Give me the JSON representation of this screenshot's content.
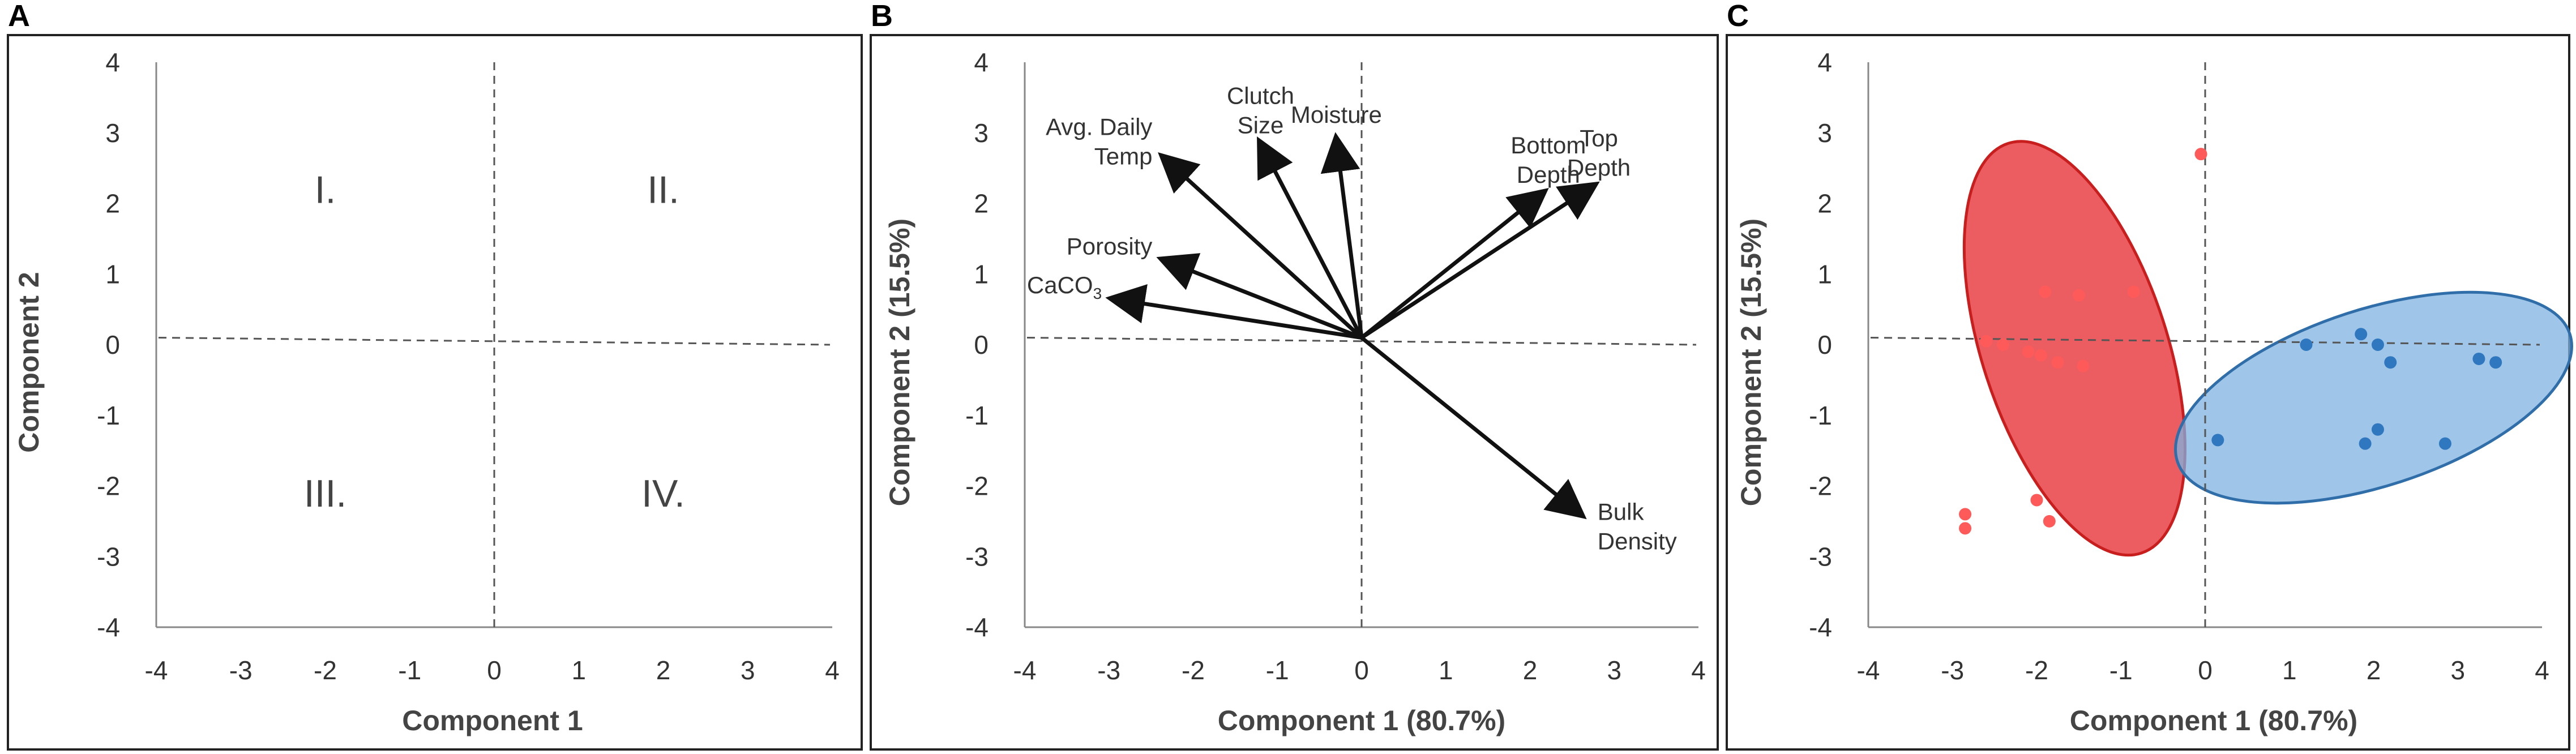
{
  "panels": [
    {
      "letter": "A",
      "xlabel": "Component 1",
      "ylabel": "Component 2",
      "quadrant_labels": [
        "I.",
        "II.",
        "III.",
        "IV."
      ]
    },
    {
      "letter": "B",
      "xlabel": "Component 1 (80.7%)",
      "ylabel": "Component 2 (15.5%)"
    },
    {
      "letter": "C",
      "xlabel": "Component 1 (80.7%)",
      "ylabel": "Component 2 (15.5%)"
    }
  ],
  "colors": {
    "axis": "#000000",
    "tick_text": "#333333",
    "dashed_line": "#555555",
    "red_fill": "#e8474b",
    "red_stroke": "#c81e1e",
    "red_point": "#ff5a5a",
    "blue_fill": "#7fb2e0",
    "blue_stroke": "#2f6ea9",
    "blue_point": "#2f78c0"
  },
  "chart_data": [
    {
      "type": "scatter",
      "panel": "A",
      "xlabel": "Component 1",
      "ylabel": "Component 2",
      "xlim": [
        -4,
        4
      ],
      "ylim": [
        -4,
        4
      ],
      "xticks": [
        "-4",
        "-3",
        "-2",
        "-1",
        "0",
        "1",
        "2",
        "3",
        "4"
      ],
      "yticks": [
        "4",
        "3",
        "2",
        "1",
        "0",
        "-1",
        "-2",
        "-3",
        "-4"
      ],
      "grid": false,
      "reference_lines": "dashed lines at x=0 and y=0",
      "annotations": [
        {
          "text": "I.",
          "x": -2,
          "y": 2.2
        },
        {
          "text": "II.",
          "x": 2,
          "y": 2.2
        },
        {
          "text": "III.",
          "x": -2,
          "y": -2.1
        },
        {
          "text": "IV.",
          "x": 2,
          "y": -2.1
        }
      ]
    },
    {
      "type": "biplot",
      "panel": "B",
      "xlabel": "Component 1 (80.7%)",
      "ylabel": "Component 2 (15.5%)",
      "xlim": [
        -4,
        4
      ],
      "ylim": [
        -4,
        4
      ],
      "xticks": [
        "-4",
        "-3",
        "-2",
        "-1",
        "0",
        "1",
        "2",
        "3",
        "4"
      ],
      "yticks": [
        "4",
        "3",
        "2",
        "1",
        "0",
        "-1",
        "-2",
        "-3",
        "-4"
      ],
      "grid": false,
      "origin": [
        0,
        0.1
      ],
      "vectors": [
        {
          "label": [
            "Avg. Daily",
            "Temp"
          ],
          "x": -2.35,
          "y": 2.65
        },
        {
          "label": [
            "Clutch",
            "Size"
          ],
          "x": -1.2,
          "y": 2.85
        },
        {
          "label": [
            "Moisture"
          ],
          "x": -0.3,
          "y": 2.9
        },
        {
          "label": [
            "Porosity"
          ],
          "x": -2.35,
          "y": 1.2
        },
        {
          "label": [
            "CaCO3"
          ],
          "x": -2.95,
          "y": 0.65
        },
        {
          "label": [
            "Bottom",
            "Depth"
          ],
          "x": 2.15,
          "y": 2.15
        },
        {
          "label": [
            "Top",
            "Depth"
          ],
          "x": 2.75,
          "y": 2.25
        },
        {
          "label": [
            "Bulk",
            "Density"
          ],
          "x": 2.6,
          "y": -2.4
        }
      ]
    },
    {
      "type": "scatter",
      "panel": "C",
      "xlabel": "Component 1 (80.7%)",
      "ylabel": "Component 2 (15.5%)",
      "xlim": [
        -4,
        4
      ],
      "ylim": [
        -4,
        4
      ],
      "xticks": [
        "-4",
        "-3",
        "-2",
        "-1",
        "0",
        "1",
        "2",
        "3",
        "4"
      ],
      "yticks": [
        "4",
        "3",
        "2",
        "1",
        "0",
        "-1",
        "-2",
        "-3",
        "-4"
      ],
      "grid": false,
      "series": [
        {
          "color": "#ff5a5a",
          "points": [
            [
              -0.05,
              2.7
            ],
            [
              -1.9,
              0.75
            ],
            [
              -1.5,
              0.7
            ],
            [
              -0.85,
              0.75
            ],
            [
              -2.6,
              0.05
            ],
            [
              -2.4,
              0.0
            ],
            [
              -2.1,
              -0.1
            ],
            [
              -1.95,
              -0.15
            ],
            [
              -1.75,
              -0.25
            ],
            [
              -1.45,
              -0.3
            ],
            [
              -2.85,
              -2.4
            ],
            [
              -2.85,
              -2.6
            ],
            [
              -2.0,
              -2.2
            ],
            [
              -1.85,
              -2.5
            ]
          ],
          "ellipse": {
            "cx": -1.55,
            "cy": -0.05,
            "rx": 1.1,
            "ry": 3.05,
            "angle_deg": -18
          }
        },
        {
          "color": "#2f78c0",
          "points": [
            [
              1.2,
              0.0
            ],
            [
              1.85,
              0.15
            ],
            [
              2.05,
              0.0
            ],
            [
              2.2,
              -0.25
            ],
            [
              3.25,
              -0.2
            ],
            [
              3.45,
              -0.25
            ],
            [
              0.15,
              -1.35
            ],
            [
              1.9,
              -1.4
            ],
            [
              2.05,
              -1.2
            ],
            [
              2.85,
              -1.4
            ]
          ],
          "ellipse": {
            "cx": 2.0,
            "cy": -0.75,
            "rx": 2.45,
            "ry": 1.25,
            "angle_deg": -18
          }
        }
      ]
    }
  ]
}
